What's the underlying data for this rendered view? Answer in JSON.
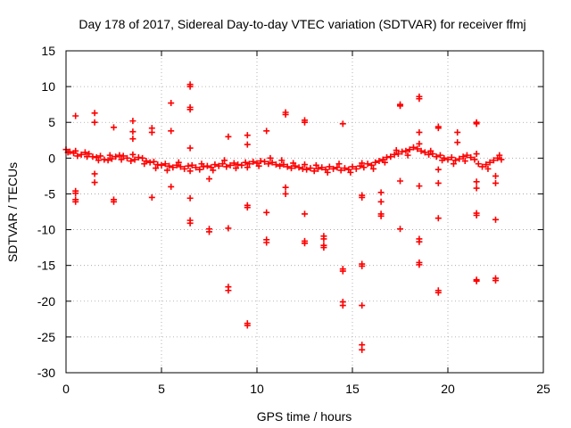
{
  "chart_data": {
    "type": "scatter",
    "title": "Day 178 of 2017, Sidereal Day-to-day VTEC variation (SDTVAR) for receiver ffmj",
    "xlabel": "GPS time / hours",
    "ylabel": "SDTVAR / TECUs",
    "xlim": [
      0,
      25
    ],
    "ylim": [
      -30,
      15
    ],
    "xticks": [
      "0",
      "5",
      "10",
      "15",
      "20",
      "25"
    ],
    "yticks": [
      "15",
      "10",
      "5",
      "0",
      "-5",
      "-10",
      "-15",
      "-20",
      "-25",
      "-30"
    ],
    "xtick_values": [
      0,
      5,
      10,
      15,
      20,
      25
    ],
    "ytick_values": [
      15,
      10,
      5,
      0,
      -5,
      -10,
      -15,
      -20,
      -25,
      -30
    ],
    "grid": true,
    "marker": "plus",
    "color": "#ff0000",
    "series": [
      {
        "name": "SDTVAR",
        "points": [
          [
            0.0,
            1.2
          ],
          [
            0.2,
            0.9
          ],
          [
            0.4,
            0.7
          ],
          [
            0.6,
            0.3
          ],
          [
            0.8,
            0.5
          ],
          [
            1.0,
            0.8
          ],
          [
            1.2,
            0.6
          ],
          [
            1.4,
            0.2
          ],
          [
            1.6,
            0.1
          ],
          [
            1.8,
            0.3
          ],
          [
            2.0,
            -0.2
          ],
          [
            2.2,
            -0.3
          ],
          [
            2.4,
            -0.1
          ],
          [
            2.6,
            0.2
          ],
          [
            2.8,
            0.4
          ],
          [
            3.0,
            0.3
          ],
          [
            3.2,
            0.0
          ],
          [
            3.4,
            -0.4
          ],
          [
            3.6,
            -0.2
          ],
          [
            3.8,
            0.1
          ],
          [
            4.0,
            0.0
          ],
          [
            4.2,
            -0.4
          ],
          [
            4.4,
            -0.6
          ],
          [
            4.6,
            -0.5
          ],
          [
            4.8,
            -0.9
          ],
          [
            5.0,
            -1.0
          ],
          [
            5.2,
            -0.8
          ],
          [
            5.4,
            -1.1
          ],
          [
            5.6,
            -1.3
          ],
          [
            5.8,
            -1.0
          ],
          [
            6.0,
            -1.2
          ],
          [
            6.2,
            -1.5
          ],
          [
            6.4,
            -1.1
          ],
          [
            6.6,
            -1.0
          ],
          [
            6.8,
            -1.3
          ],
          [
            7.0,
            -1.6
          ],
          [
            7.2,
            -1.2
          ],
          [
            7.4,
            -1.1
          ],
          [
            7.6,
            -1.3
          ],
          [
            7.8,
            -0.9
          ],
          [
            8.0,
            -1.1
          ],
          [
            8.2,
            -0.8
          ],
          [
            8.4,
            -1.2
          ],
          [
            8.6,
            -1.0
          ],
          [
            8.8,
            -0.7
          ],
          [
            9.0,
            -0.9
          ],
          [
            9.2,
            -1.0
          ],
          [
            9.4,
            -0.6
          ],
          [
            9.6,
            -0.8
          ],
          [
            9.8,
            -0.5
          ],
          [
            10.0,
            -0.7
          ],
          [
            10.2,
            -0.4
          ],
          [
            10.4,
            -0.5
          ],
          [
            10.6,
            -0.8
          ],
          [
            10.8,
            -0.6
          ],
          [
            11.0,
            -0.9
          ],
          [
            11.2,
            -1.1
          ],
          [
            11.4,
            -0.9
          ],
          [
            11.6,
            -1.2
          ],
          [
            11.8,
            -1.4
          ],
          [
            12.0,
            -1.1
          ],
          [
            12.2,
            -1.3
          ],
          [
            12.4,
            -1.5
          ],
          [
            12.6,
            -1.6
          ],
          [
            12.8,
            -1.4
          ],
          [
            13.0,
            -1.8
          ],
          [
            13.2,
            -1.5
          ],
          [
            13.4,
            -1.3
          ],
          [
            13.6,
            -1.6
          ],
          [
            13.8,
            -1.2
          ],
          [
            14.0,
            -1.5
          ],
          [
            14.2,
            -1.3
          ],
          [
            14.4,
            -1.7
          ],
          [
            14.6,
            -1.4
          ],
          [
            14.8,
            -1.6
          ],
          [
            15.0,
            -1.2
          ],
          [
            15.2,
            -1.5
          ],
          [
            15.4,
            -1.1
          ],
          [
            15.6,
            -1.3
          ],
          [
            15.8,
            -0.8
          ],
          [
            16.0,
            -1.0
          ],
          [
            16.2,
            -0.6
          ],
          [
            16.4,
            -0.4
          ],
          [
            16.6,
            -0.2
          ],
          [
            16.8,
            0.1
          ],
          [
            17.0,
            0.2
          ],
          [
            17.2,
            0.5
          ],
          [
            17.4,
            0.6
          ],
          [
            17.6,
            0.9
          ],
          [
            17.8,
            1.0
          ],
          [
            18.0,
            1.2
          ],
          [
            18.2,
            1.5
          ],
          [
            18.4,
            1.3
          ],
          [
            18.6,
            1.0
          ],
          [
            18.8,
            0.8
          ],
          [
            19.0,
            0.5
          ],
          [
            19.2,
            0.6
          ],
          [
            19.4,
            0.2
          ],
          [
            19.6,
            0.4
          ],
          [
            19.8,
            0.0
          ],
          [
            20.0,
            -0.2
          ],
          [
            20.2,
            0.1
          ],
          [
            20.4,
            -0.3
          ],
          [
            20.6,
            -0.1
          ],
          [
            20.8,
            0.2
          ],
          [
            21.0,
            0.4
          ],
          [
            21.2,
            0.1
          ],
          [
            21.4,
            -0.2
          ],
          [
            21.6,
            -0.8
          ],
          [
            21.8,
            -1.2
          ],
          [
            22.0,
            -0.9
          ],
          [
            22.2,
            -0.6
          ],
          [
            22.4,
            -0.3
          ],
          [
            22.6,
            0.0
          ],
          [
            22.8,
            -0.2
          ],
          [
            0.1,
            0.8
          ],
          [
            0.5,
            1.0
          ],
          [
            1.1,
            0.2
          ],
          [
            1.7,
            -0.3
          ],
          [
            2.3,
            0.4
          ],
          [
            2.9,
            -0.2
          ],
          [
            3.5,
            0.5
          ],
          [
            4.1,
            -0.8
          ],
          [
            4.7,
            -1.4
          ],
          [
            5.3,
            -1.7
          ],
          [
            5.9,
            -0.6
          ],
          [
            6.5,
            -1.8
          ],
          [
            7.1,
            -0.8
          ],
          [
            7.7,
            -1.7
          ],
          [
            8.3,
            -0.3
          ],
          [
            8.9,
            -1.4
          ],
          [
            9.5,
            -1.3
          ],
          [
            10.1,
            -1.1
          ],
          [
            10.7,
            0.0
          ],
          [
            11.3,
            -0.3
          ],
          [
            11.9,
            -0.7
          ],
          [
            12.5,
            -0.9
          ],
          [
            13.1,
            -1.0
          ],
          [
            13.7,
            -2.0
          ],
          [
            14.3,
            -0.8
          ],
          [
            14.9,
            -2.0
          ],
          [
            15.5,
            -0.7
          ],
          [
            16.1,
            -1.5
          ],
          [
            16.7,
            -0.6
          ],
          [
            17.3,
            1.1
          ],
          [
            17.9,
            0.4
          ],
          [
            18.5,
            2.0
          ],
          [
            19.1,
            1.0
          ],
          [
            19.7,
            -0.3
          ],
          [
            20.3,
            -0.8
          ],
          [
            20.9,
            -0.4
          ],
          [
            21.5,
            0.6
          ],
          [
            22.1,
            -1.5
          ],
          [
            22.7,
            0.4
          ],
          [
            0.5,
            5.9
          ],
          [
            1.5,
            6.3
          ],
          [
            1.5,
            5.0
          ],
          [
            2.5,
            4.3
          ],
          [
            3.5,
            5.2
          ],
          [
            3.5,
            3.7
          ],
          [
            3.5,
            2.7
          ],
          [
            4.5,
            4.2
          ],
          [
            4.5,
            3.6
          ],
          [
            5.5,
            7.7
          ],
          [
            5.5,
            3.8
          ],
          [
            6.5,
            10.3
          ],
          [
            6.5,
            10.0
          ],
          [
            6.5,
            7.1
          ],
          [
            6.5,
            6.8
          ],
          [
            6.5,
            1.4
          ],
          [
            8.5,
            3.0
          ],
          [
            9.5,
            3.2
          ],
          [
            9.5,
            1.9
          ],
          [
            10.5,
            3.8
          ],
          [
            11.5,
            6.4
          ],
          [
            11.5,
            6.1
          ],
          [
            12.5,
            5.3
          ],
          [
            12.5,
            5.0
          ],
          [
            14.5,
            4.8
          ],
          [
            17.5,
            7.5
          ],
          [
            17.5,
            7.3
          ],
          [
            18.5,
            8.6
          ],
          [
            18.5,
            8.3
          ],
          [
            18.5,
            3.6
          ],
          [
            19.5,
            4.4
          ],
          [
            19.5,
            4.2
          ],
          [
            20.5,
            3.6
          ],
          [
            20.5,
            2.2
          ],
          [
            21.5,
            5.0
          ],
          [
            21.5,
            4.8
          ],
          [
            0.5,
            -4.6
          ],
          [
            0.5,
            -4.9
          ],
          [
            0.5,
            -5.8
          ],
          [
            0.5,
            -6.1
          ],
          [
            1.5,
            -2.2
          ],
          [
            1.5,
            -3.4
          ],
          [
            2.5,
            -5.8
          ],
          [
            2.5,
            -6.1
          ],
          [
            4.5,
            -5.5
          ],
          [
            5.5,
            -4.0
          ],
          [
            6.5,
            -5.6
          ],
          [
            6.5,
            -8.7
          ],
          [
            6.5,
            -9.1
          ],
          [
            7.5,
            -2.9
          ],
          [
            7.5,
            -9.9
          ],
          [
            7.5,
            -10.3
          ],
          [
            8.5,
            -9.8
          ],
          [
            8.5,
            -18.0
          ],
          [
            8.5,
            -18.5
          ],
          [
            9.5,
            -6.6
          ],
          [
            9.5,
            -6.9
          ],
          [
            9.5,
            -23.1
          ],
          [
            9.5,
            -23.4
          ],
          [
            10.5,
            -7.6
          ],
          [
            10.5,
            -11.4
          ],
          [
            10.5,
            -11.8
          ],
          [
            11.5,
            -4.1
          ],
          [
            11.5,
            -5.0
          ],
          [
            12.5,
            -7.8
          ],
          [
            12.5,
            -11.6
          ],
          [
            12.5,
            -11.9
          ],
          [
            13.5,
            -10.9
          ],
          [
            13.5,
            -11.3
          ],
          [
            13.5,
            -12.2
          ],
          [
            13.5,
            -12.5
          ],
          [
            14.5,
            -15.5
          ],
          [
            14.5,
            -15.8
          ],
          [
            14.5,
            -20.1
          ],
          [
            14.5,
            -20.6
          ],
          [
            15.5,
            -5.2
          ],
          [
            15.5,
            -5.5
          ],
          [
            15.5,
            -14.8
          ],
          [
            15.5,
            -15.1
          ],
          [
            15.5,
            -20.6
          ],
          [
            15.5,
            -26.1
          ],
          [
            15.5,
            -26.8
          ],
          [
            16.5,
            -4.8
          ],
          [
            16.5,
            -6.1
          ],
          [
            16.5,
            -7.8
          ],
          [
            16.5,
            -8.1
          ],
          [
            17.5,
            -3.2
          ],
          [
            17.5,
            -9.9
          ],
          [
            18.5,
            -3.9
          ],
          [
            18.5,
            -11.3
          ],
          [
            18.5,
            -11.7
          ],
          [
            18.5,
            -14.6
          ],
          [
            18.5,
            -14.9
          ],
          [
            19.5,
            -1.6
          ],
          [
            19.5,
            -3.5
          ],
          [
            19.5,
            -8.4
          ],
          [
            19.5,
            -18.5
          ],
          [
            19.5,
            -18.8
          ],
          [
            21.5,
            -3.3
          ],
          [
            21.5,
            -4.2
          ],
          [
            21.5,
            -7.7
          ],
          [
            21.5,
            -8.0
          ],
          [
            21.5,
            -17.0
          ],
          [
            21.5,
            -17.2
          ],
          [
            22.5,
            -2.5
          ],
          [
            22.5,
            -3.5
          ],
          [
            22.5,
            -8.6
          ],
          [
            22.5,
            -16.8
          ],
          [
            22.5,
            -17.1
          ]
        ]
      }
    ]
  }
}
